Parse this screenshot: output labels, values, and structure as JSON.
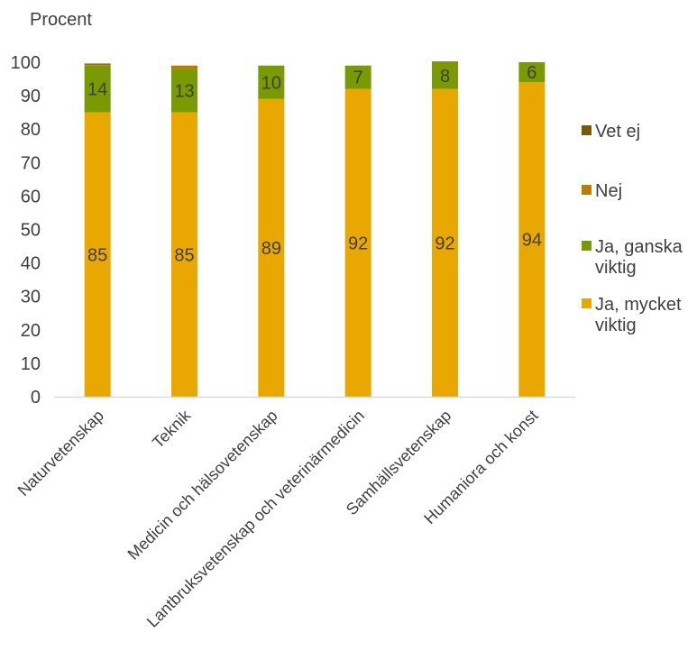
{
  "chart_data": {
    "type": "bar",
    "stacked": true,
    "y_unit_label": "Procent",
    "categories": [
      "Naturvetenskap",
      "Teknik",
      "Medicin och hälsovetenskap",
      "Lantbruksvetenskap och veterinärmedicin",
      "Samhällsvetenskap",
      "Humaniora och konst"
    ],
    "series": [
      {
        "name": "Ja, mycket viktig",
        "color": "#E8A800",
        "values": [
          85,
          85,
          89,
          92,
          92,
          94
        ],
        "labels": [
          "85",
          "85",
          "89",
          "92",
          "92",
          "94"
        ]
      },
      {
        "name": "Ja, ganska viktig",
        "color": "#7A9A01",
        "values": [
          14,
          13,
          10,
          7,
          8,
          6
        ],
        "labels": [
          "14",
          "13",
          "10",
          "7",
          "8",
          "6"
        ]
      },
      {
        "name": "Nej",
        "color": "#C07A00",
        "values": [
          0.3,
          1,
          0,
          0,
          0,
          0
        ],
        "labels": [
          "",
          "",
          "",
          "",
          "",
          ""
        ]
      },
      {
        "name": "Vet ej",
        "color": "#7A5A00",
        "values": [
          0.3,
          0,
          0,
          0,
          0.2,
          0
        ],
        "labels": [
          "",
          "",
          "",
          "",
          "",
          ""
        ]
      }
    ],
    "legend": {
      "position": "right",
      "items": [
        {
          "lines": [
            "Vet ej"
          ],
          "color": "#7A5A00"
        },
        {
          "lines": [
            "Nej"
          ],
          "color": "#C07A00"
        },
        {
          "lines": [
            "Ja, ganska",
            "viktig"
          ],
          "color": "#7A9A01"
        },
        {
          "lines": [
            "Ja, mycket",
            "viktig"
          ],
          "color": "#E8A800"
        }
      ]
    },
    "ylim": [
      0,
      100
    ],
    "yticks": [
      0,
      10,
      20,
      30,
      40,
      50,
      60,
      70,
      80,
      90,
      100
    ],
    "grid": false
  }
}
